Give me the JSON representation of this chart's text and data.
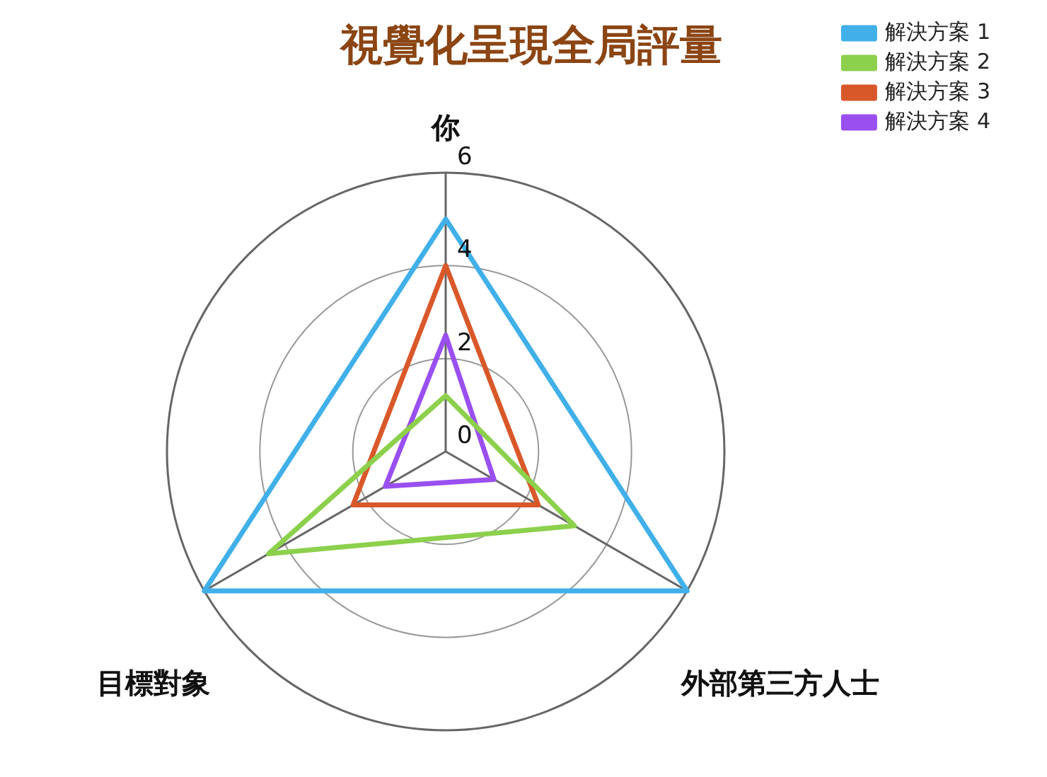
{
  "chart_data": {
    "type": "radar",
    "title": "視覺化呈現全局評量",
    "categories": [
      "你",
      "外部第三方人士",
      "目標對象"
    ],
    "series": [
      {
        "name": "解決方案 1",
        "color": "#41b0e8",
        "values": [
          5,
          6,
          6
        ]
      },
      {
        "name": "解決方案 2",
        "color": "#8cd04c",
        "values": [
          1.2,
          3.2,
          4.4
        ]
      },
      {
        "name": "解決方案 3",
        "color": "#d9582a",
        "values": [
          4,
          2.3,
          2.3
        ]
      },
      {
        "name": "解決方案 4",
        "color": "#9a4ff0",
        "values": [
          2.5,
          1.2,
          1.5
        ]
      }
    ],
    "ylim": [
      0,
      6
    ],
    "yticks": [
      0,
      2,
      4,
      6
    ],
    "grid": true,
    "legend": "right",
    "marker": "none"
  }
}
